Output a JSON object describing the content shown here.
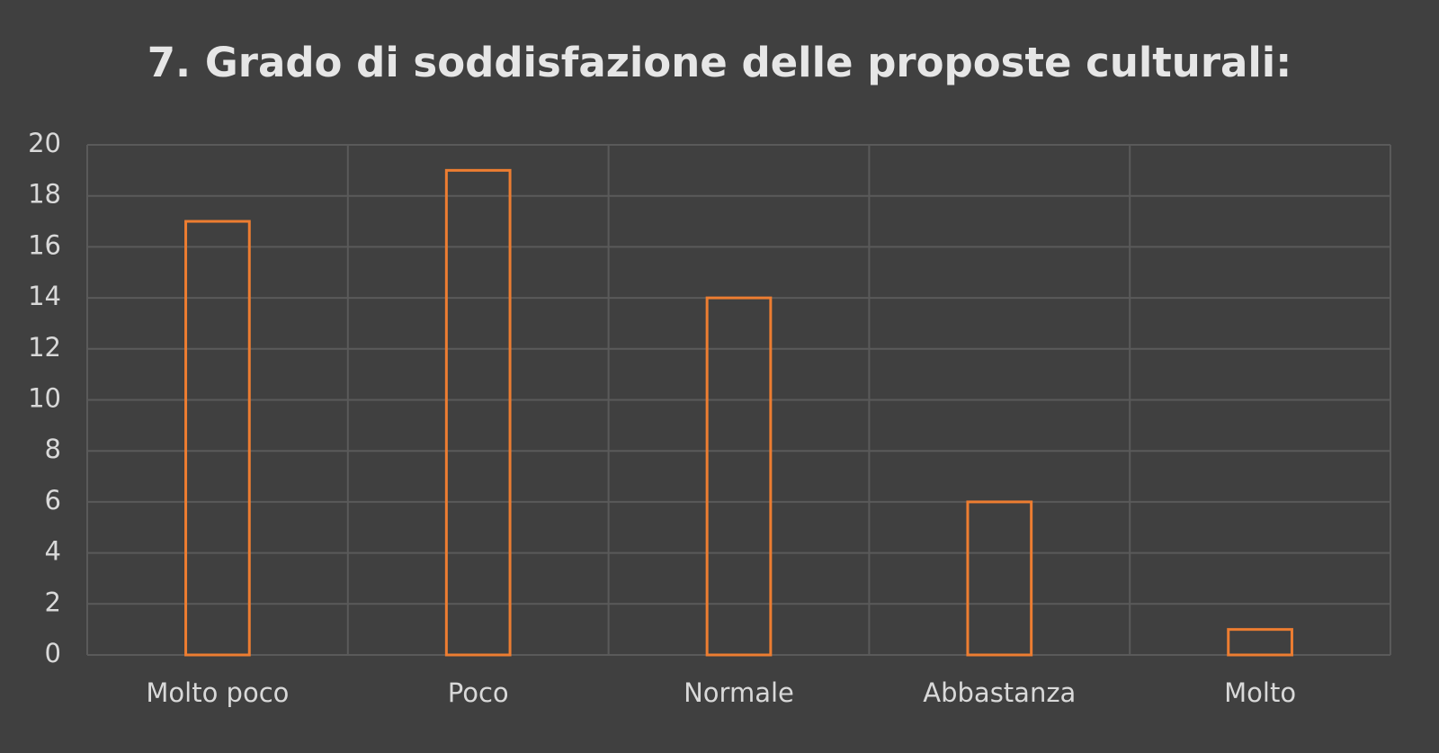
{
  "chart_data": {
    "type": "bar",
    "title": "7. Grado di soddisfazione delle proposte culturali:",
    "categories": [
      "Molto poco",
      "Poco",
      "Normale",
      "Abbastanza",
      "Molto"
    ],
    "values": [
      17,
      19,
      14,
      6,
      1
    ],
    "color": "#ed7d31",
    "ylim": [
      0,
      20
    ],
    "yticks": [
      0,
      2,
      4,
      6,
      8,
      10,
      12,
      14,
      16,
      18,
      20
    ],
    "grid": true
  }
}
